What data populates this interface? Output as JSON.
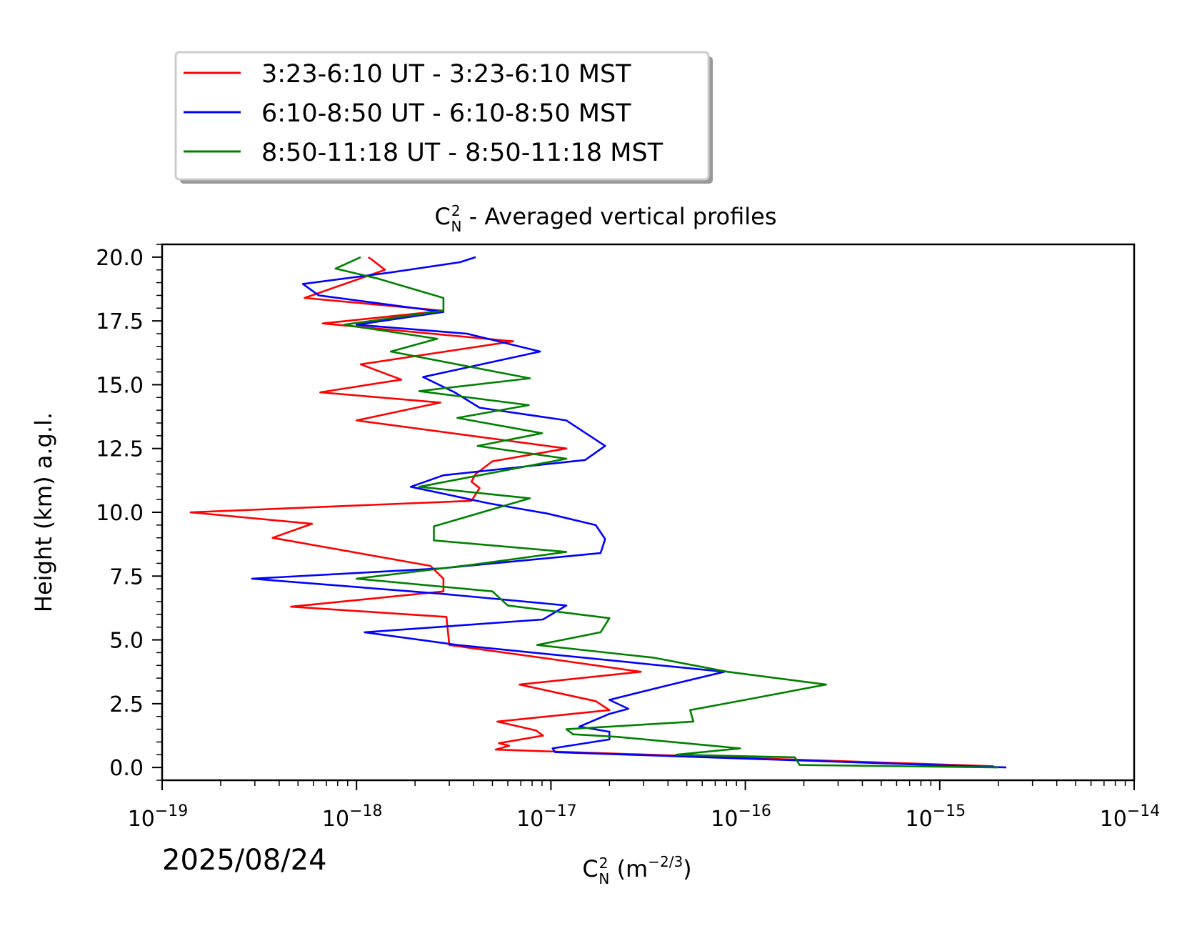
{
  "chart_data": {
    "type": "line",
    "title": "Averaged vertical profiles",
    "title_prefix": "C",
    "title_sub": "N",
    "title_sup": "2",
    "xlabel_prefix": "C",
    "xlabel_sub": "N",
    "xlabel_sup": "2",
    "xlabel_unit": " (m",
    "xlabel_unit_exp": "−2/3",
    "xlabel_unit_close": ")",
    "ylabel": "Height (km) a.g.l.",
    "date": "2025/08/24",
    "x_scale": "log",
    "xlim": [
      1e-19,
      1e-14
    ],
    "ylim": [
      -0.5,
      20.5
    ],
    "x_ticks": [
      -19,
      -18,
      -17,
      -16,
      -15,
      -14
    ],
    "x_tick_base": "10",
    "x_tick_exps": [
      "−19",
      "−18",
      "−17",
      "−16",
      "−15",
      "−14"
    ],
    "y_ticks": [
      0.0,
      2.5,
      5.0,
      7.5,
      10.0,
      12.5,
      15.0,
      17.5,
      20.0
    ],
    "y_tick_labels": [
      "0.0",
      "2.5",
      "5.0",
      "7.5",
      "10.0",
      "12.5",
      "15.0",
      "17.5",
      "20.0"
    ],
    "legend_position": "above plot, top-left",
    "series": [
      {
        "name": "3:23-6:10 UT - 3:23-6:10 MST",
        "color": "#ff0000",
        "points": [
          [
            1.9e-15,
            0.05
          ],
          [
            5.2e-18,
            0.7
          ],
          [
            6.1e-18,
            0.85
          ],
          [
            5.4e-18,
            0.95
          ],
          [
            9.1e-18,
            1.25
          ],
          [
            8.4e-18,
            1.45
          ],
          [
            5.3e-18,
            1.8
          ],
          [
            2e-17,
            2.25
          ],
          [
            1.7e-17,
            2.6
          ],
          [
            6.9e-18,
            3.25
          ],
          [
            2.9e-17,
            3.75
          ],
          [
            1e-17,
            4.25
          ],
          [
            3e-18,
            4.8
          ],
          [
            2.9e-18,
            5.9
          ],
          [
            4.6e-19,
            6.3
          ],
          [
            2.8e-18,
            6.9
          ],
          [
            2.8e-18,
            7.4
          ],
          [
            2.4e-18,
            7.9
          ],
          [
            3.7e-19,
            9.0
          ],
          [
            5.9e-19,
            9.55
          ],
          [
            1.4e-19,
            10.0
          ],
          [
            3.9e-18,
            10.45
          ],
          [
            4.3e-18,
            10.95
          ],
          [
            3.9e-18,
            11.2
          ],
          [
            4.1e-18,
            11.5
          ],
          [
            5e-18,
            12.0
          ],
          [
            1.2e-17,
            12.5
          ],
          [
            1e-18,
            13.6
          ],
          [
            2.7e-18,
            14.3
          ],
          [
            6.5e-19,
            14.7
          ],
          [
            1.7e-18,
            15.2
          ],
          [
            1.05e-18,
            15.8
          ],
          [
            6.4e-18,
            16.7
          ],
          [
            6.7e-19,
            17.4
          ],
          [
            2.8e-18,
            17.9
          ],
          [
            5.4e-19,
            18.4
          ],
          [
            1.4e-18,
            19.5
          ],
          [
            1.2e-18,
            19.9
          ],
          [
            1.15e-18,
            20.0
          ]
        ]
      },
      {
        "name": "6:10-8:50 UT - 6:10-8:50 MST",
        "color": "#0000ff",
        "points": [
          [
            2.2e-15,
            0.0
          ],
          [
            1.05e-17,
            0.6
          ],
          [
            1.02e-17,
            0.75
          ],
          [
            2e-17,
            1.1
          ],
          [
            2e-17,
            1.4
          ],
          [
            1.4e-17,
            1.6
          ],
          [
            2e-17,
            2.1
          ],
          [
            2.5e-17,
            2.3
          ],
          [
            2e-17,
            2.65
          ],
          [
            3.9e-17,
            3.2
          ],
          [
            7.8e-17,
            3.75
          ],
          [
            3.3e-18,
            4.8
          ],
          [
            1.1e-18,
            5.3
          ],
          [
            9.1e-18,
            5.8
          ],
          [
            1.2e-17,
            6.35
          ],
          [
            2.8e-18,
            6.8
          ],
          [
            2.9e-19,
            7.4
          ],
          [
            2.7e-18,
            7.8
          ],
          [
            1.8e-17,
            8.4
          ],
          [
            1.9e-17,
            8.95
          ],
          [
            1.7e-17,
            9.5
          ],
          [
            9.6e-18,
            9.95
          ],
          [
            4.8e-18,
            10.35
          ],
          [
            1.9e-18,
            11.0
          ],
          [
            2.8e-18,
            11.45
          ],
          [
            1.5e-17,
            12.05
          ],
          [
            1.9e-17,
            12.6
          ],
          [
            1.2e-17,
            13.6
          ],
          [
            4.3e-18,
            14.1
          ],
          [
            3.2e-18,
            14.7
          ],
          [
            2.2e-18,
            15.3
          ],
          [
            8.8e-18,
            16.3
          ],
          [
            3.7e-18,
            17.0
          ],
          [
            1e-18,
            17.35
          ],
          [
            2.8e-18,
            17.85
          ],
          [
            6.4e-19,
            18.5
          ],
          [
            5.3e-19,
            18.95
          ],
          [
            1.5e-18,
            19.4
          ],
          [
            3.4e-18,
            19.8
          ],
          [
            4.1e-18,
            20.0
          ]
        ]
      },
      {
        "name": "8:50-11:18 UT - 8:50-11:18 MST",
        "color": "#008000",
        "points": [
          [
            2e-15,
            0.0
          ],
          [
            1.9e-16,
            0.1
          ],
          [
            1.8e-16,
            0.4
          ],
          [
            4.4e-17,
            0.5
          ],
          [
            9.4e-17,
            0.75
          ],
          [
            2.2e-17,
            1.2
          ],
          [
            1.3e-17,
            1.3
          ],
          [
            1.2e-17,
            1.5
          ],
          [
            5.4e-17,
            1.8
          ],
          [
            5.2e-17,
            2.25
          ],
          [
            1e-16,
            2.65
          ],
          [
            2.6e-16,
            3.25
          ],
          [
            8.1e-17,
            3.75
          ],
          [
            3.4e-17,
            4.3
          ],
          [
            8.5e-18,
            4.8
          ],
          [
            1.8e-17,
            5.3
          ],
          [
            2e-17,
            5.85
          ],
          [
            6e-18,
            6.35
          ],
          [
            5e-18,
            6.9
          ],
          [
            1e-18,
            7.4
          ],
          [
            4e-18,
            7.95
          ],
          [
            1.2e-17,
            8.45
          ],
          [
            2.5e-18,
            8.9
          ],
          [
            2.5e-18,
            9.45
          ],
          [
            7.8e-18,
            10.55
          ],
          [
            2.1e-18,
            11.0
          ],
          [
            1.2e-17,
            12.1
          ],
          [
            4.2e-18,
            12.6
          ],
          [
            9e-18,
            13.1
          ],
          [
            3.3e-18,
            13.7
          ],
          [
            7.7e-18,
            14.2
          ],
          [
            2.1e-18,
            14.75
          ],
          [
            7.8e-18,
            15.25
          ],
          [
            1.5e-18,
            16.3
          ],
          [
            2.6e-18,
            16.8
          ],
          [
            8.6e-19,
            17.35
          ],
          [
            2.8e-18,
            17.9
          ],
          [
            2.8e-18,
            18.4
          ],
          [
            1.3e-18,
            19.15
          ],
          [
            7.8e-19,
            19.55
          ],
          [
            1.05e-18,
            20.0
          ]
        ]
      }
    ]
  }
}
